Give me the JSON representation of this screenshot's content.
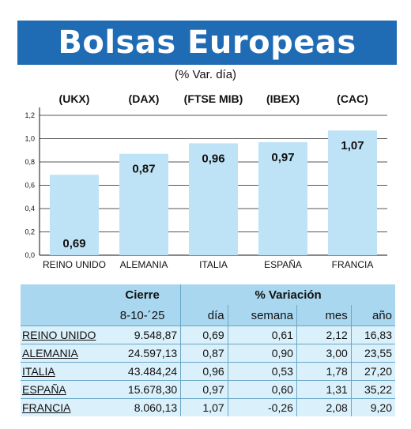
{
  "title": "Bolsas Europeas",
  "subtitle": "(% Var. día)",
  "chart_data": {
    "type": "bar",
    "categories": [
      "REINO UNIDO",
      "ALEMANIA",
      "ITALIA",
      "ESPAÑA",
      "FRANCIA"
    ],
    "index_labels": [
      "(UKX)",
      "(DAX)",
      "(FTSE MIB)",
      "(IBEX)",
      "(CAC)"
    ],
    "values": [
      0.69,
      0.87,
      0.96,
      0.97,
      1.07
    ],
    "value_labels": [
      "0,69",
      "0,87",
      "0,96",
      "0,97",
      "1,07"
    ],
    "ylim": [
      0,
      1.2
    ],
    "yticks": [
      0,
      0.2,
      0.4,
      0.6,
      0.8,
      1.0,
      1.2
    ],
    "ytick_labels": [
      "0,0",
      "0,2",
      "0,4",
      "0,6",
      "0,8",
      "1,0",
      "1,2"
    ],
    "grid": true,
    "bar_color": "#bfe3f6",
    "grid_color": "#555555"
  },
  "table": {
    "header_cierre": "Cierre",
    "header_variacion": "% Variación",
    "cierre_date": "8-10-´25",
    "col_dia": "día",
    "col_semana": "semana",
    "col_mes": "mes",
    "col_ano": "año",
    "rows": [
      {
        "name": "REINO UNIDO",
        "cierre": "9.548,87",
        "dia": "0,69",
        "semana": "0,61",
        "mes": "2,12",
        "ano": "16,83"
      },
      {
        "name": "ALEMANIA",
        "cierre": "24.597,13",
        "dia": "0,87",
        "semana": "0,90",
        "mes": "3,00",
        "ano": "23,55"
      },
      {
        "name": "ITALIA",
        "cierre": "43.484,24",
        "dia": "0,96",
        "semana": "0,53",
        "mes": "1,78",
        "ano": "27,20"
      },
      {
        "name": "ESPAÑA",
        "cierre": "15.678,30",
        "dia": "0,97",
        "semana": "0,60",
        "mes": "1,31",
        "ano": "35,22"
      },
      {
        "name": "FRANCIA",
        "cierre": "8.060,13",
        "dia": "1,07",
        "semana": "-0,26",
        "mes": "2,08",
        "ano": "9,20"
      }
    ]
  },
  "colors": {
    "banner": "#1f6bb4",
    "table_header": "#a9d7ef",
    "table_row": "#daf0fa"
  }
}
